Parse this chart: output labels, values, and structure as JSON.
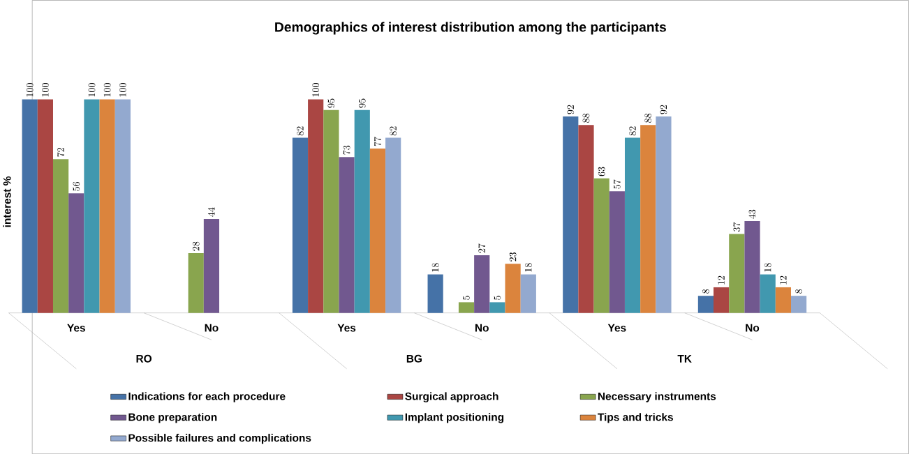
{
  "chart_data": {
    "type": "bar",
    "title": "Demographics of interest distribution among the participants",
    "ylabel": "interest %",
    "categories": [
      "Yes",
      "No",
      "Yes",
      "No",
      "Yes",
      "No"
    ],
    "annotations": [
      "RO",
      "BG",
      "TK"
    ],
    "series": [
      {
        "name": "Indications for each procedure",
        "color": "#4572a7",
        "values": [
          100,
          null,
          82,
          18,
          92,
          8
        ]
      },
      {
        "name": "Surgical approach",
        "color": "#aa4643",
        "values": [
          100,
          null,
          100,
          null,
          88,
          12
        ]
      },
      {
        "name": "Necessary instruments",
        "color": "#89a54e",
        "values": [
          72,
          28,
          95,
          5,
          63,
          37
        ]
      },
      {
        "name": "Bone preparation",
        "color": "#71588f",
        "values": [
          56,
          44,
          73,
          27,
          57,
          43
        ]
      },
      {
        "name": "Implant positioning",
        "color": "#4198af",
        "values": [
          100,
          null,
          95,
          5,
          82,
          18
        ]
      },
      {
        "name": "Tips and tricks",
        "color": "#db843d",
        "values": [
          100,
          null,
          77,
          23,
          88,
          12
        ]
      },
      {
        "name": "Possible failures and complications",
        "color": "#93a9cf",
        "values": [
          100,
          null,
          82,
          18,
          92,
          8
        ]
      }
    ],
    "data_labels": true,
    "grid": false,
    "legend": "bottom"
  }
}
